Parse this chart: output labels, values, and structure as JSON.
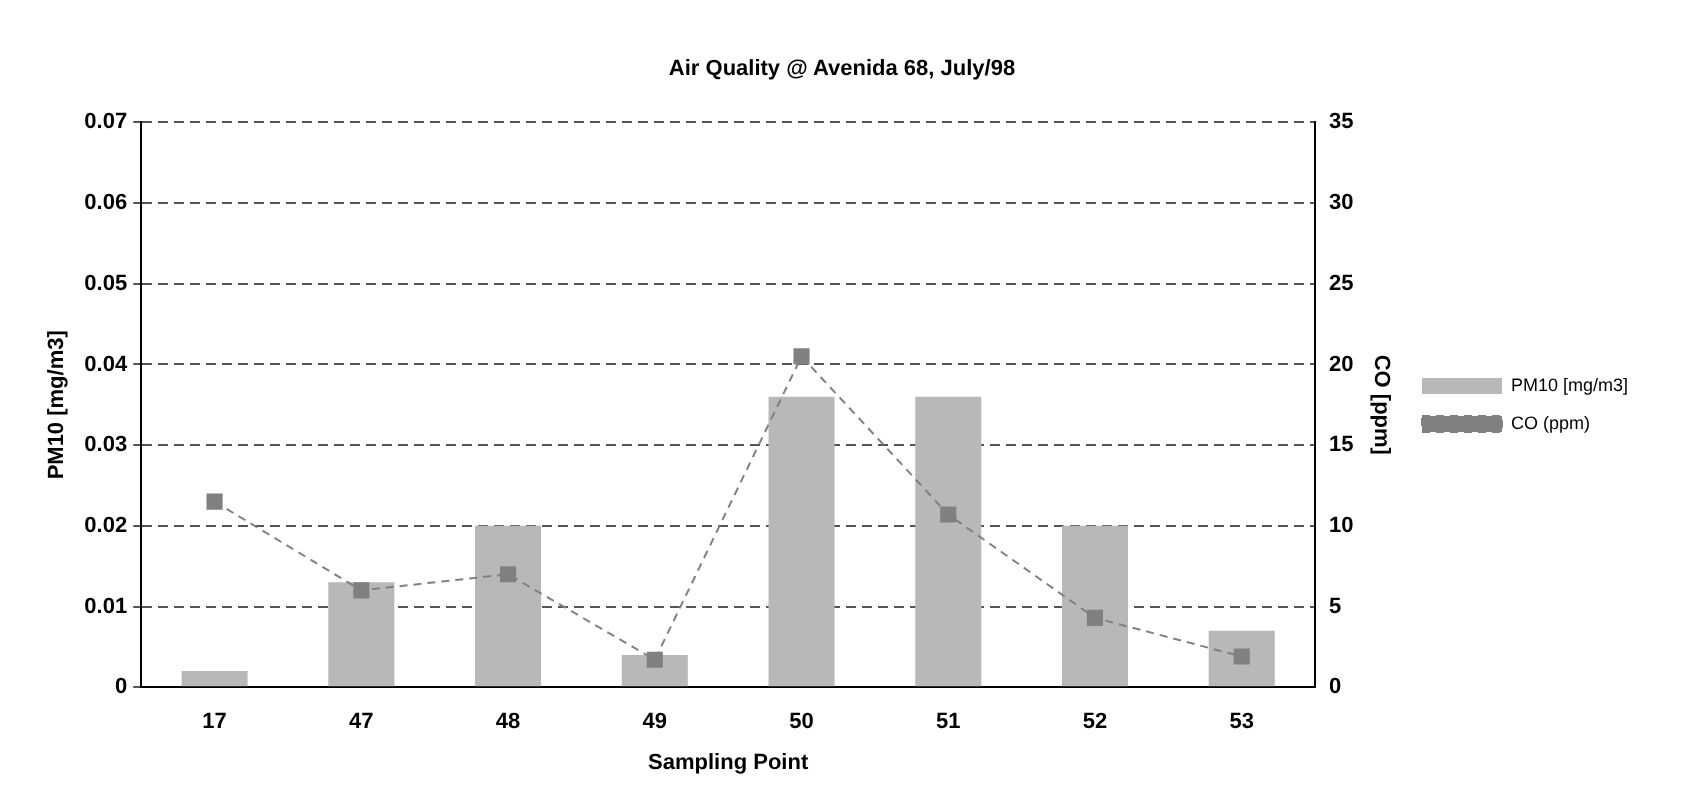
{
  "chart_data": {
    "type": "bar",
    "title": "Air Quality @ Avenida 68, July/98",
    "xlabel": "Sampling Point",
    "ylabel": "PM10 [mg/m3]",
    "y2label": "CO [ppm]",
    "categories": [
      "17",
      "47",
      "48",
      "49",
      "50",
      "51",
      "52",
      "53"
    ],
    "series": [
      {
        "name": "PM10 [mg/m3]",
        "color": "#b8b8b8",
        "values": [
          0.002,
          0.013,
          0.02,
          0.004,
          0.036,
          0.036,
          0.02,
          0.007
        ]
      },
      {
        "name": "CO (ppm)",
        "type": "line",
        "axis": "y2",
        "color": "#808080",
        "line_style": "dashed",
        "marker": "square",
        "values": [
          11.5,
          6,
          7,
          1.7,
          20.5,
          10.7,
          4.3,
          1.9
        ]
      }
    ],
    "ylim": [
      0,
      0.07
    ],
    "yticks": [
      0,
      0.01,
      0.02,
      0.03,
      0.04,
      0.05,
      0.06,
      0.07
    ],
    "y2lim": [
      0,
      35
    ],
    "y2ticks": [
      0,
      5,
      10,
      15,
      20,
      25,
      30,
      35
    ],
    "grid": "y",
    "legend": "right"
  }
}
